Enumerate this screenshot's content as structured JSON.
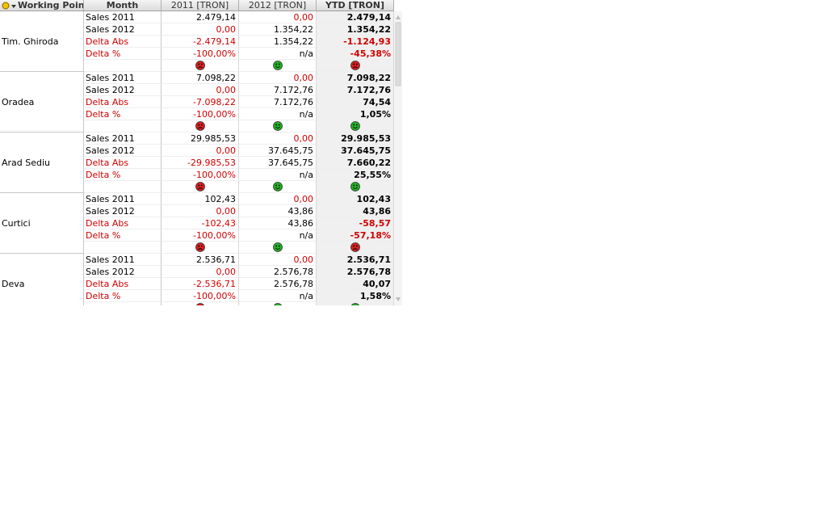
{
  "header": {
    "columns": [
      "Working Point",
      "Month",
      "2011 [TRON]",
      "2012 [TRON]",
      "YTD [TRON]"
    ]
  },
  "groups": [
    {
      "name": "Tim. Ghiroda",
      "rows": [
        [
          "Sales  2011",
          "2.479,14",
          "0,00",
          "2.479,14"
        ],
        [
          "Sales  2012",
          "0,00",
          "1.354,22",
          "1.354,22"
        ],
        [
          "Delta Abs",
          "-2.479,14",
          "1.354,22",
          "-1.124,93"
        ],
        [
          "Delta %",
          "-100,00%",
          "n/a",
          "-45,38%"
        ]
      ],
      "smileys": [
        "red",
        "green",
        "red"
      ]
    },
    {
      "name": "Oradea",
      "rows": [
        [
          "Sales  2011",
          "7.098,22",
          "0,00",
          "7.098,22"
        ],
        [
          "Sales  2012",
          "0,00",
          "7.172,76",
          "7.172,76"
        ],
        [
          "Delta Abs",
          "-7.098,22",
          "7.172,76",
          "74,54"
        ],
        [
          "Delta %",
          "-100,00%",
          "n/a",
          "1,05%"
        ]
      ],
      "smileys": [
        "red",
        "green",
        "green"
      ]
    },
    {
      "name": "Arad Sediu",
      "rows": [
        [
          "Sales  2011",
          "29.985,53",
          "0,00",
          "29.985,53"
        ],
        [
          "Sales  2012",
          "0,00",
          "37.645,75",
          "37.645,75"
        ],
        [
          "Delta Abs",
          "-29.985,53",
          "37.645,75",
          "7.660,22"
        ],
        [
          "Delta %",
          "-100,00%",
          "n/a",
          "25,55%"
        ]
      ],
      "smileys": [
        "red",
        "green",
        "green"
      ]
    },
    {
      "name": "Curtici",
      "rows": [
        [
          "Sales  2011",
          "102,43",
          "0,00",
          "102,43"
        ],
        [
          "Sales  2012",
          "0,00",
          "43,86",
          "43,86"
        ],
        [
          "Delta Abs",
          "-102,43",
          "43,86",
          "-58,57"
        ],
        [
          "Delta %",
          "-100,00%",
          "n/a",
          "-57,18%"
        ]
      ],
      "smileys": [
        "red",
        "green",
        "red"
      ]
    },
    {
      "name": "Deva",
      "rows": [
        [
          "Sales  2011",
          "2.536,71",
          "0,00",
          "2.536,71"
        ],
        [
          "Sales  2012",
          "0,00",
          "2.576,78",
          "2.576,78"
        ],
        [
          "Delta Abs",
          "-2.536,71",
          "2.576,78",
          "40,07"
        ],
        [
          "Delta %",
          "-100,00%",
          "n/a",
          "1,58%"
        ]
      ],
      "smileys": [
        "red",
        "green",
        "green"
      ]
    }
  ]
}
